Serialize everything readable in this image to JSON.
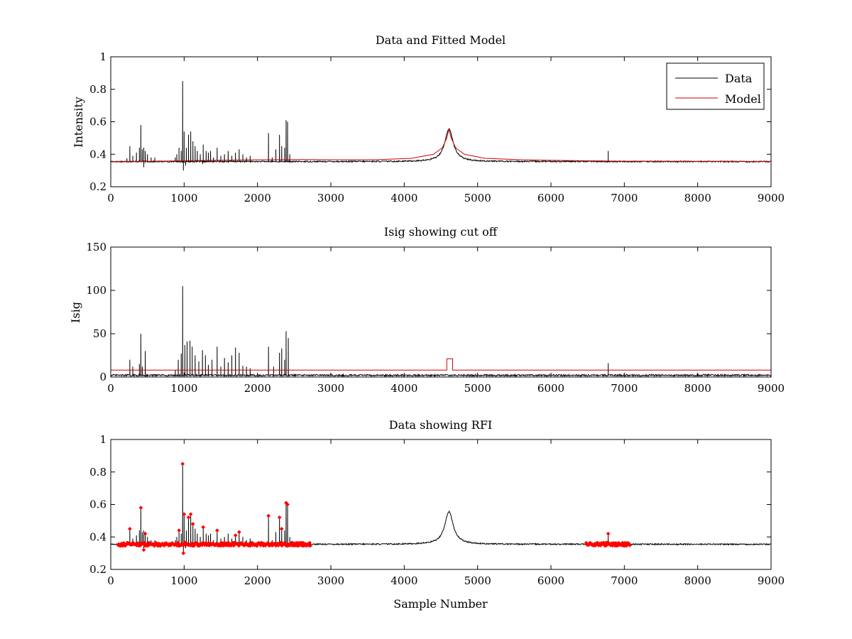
{
  "figure": {
    "background": "#ffffff"
  },
  "chart_data": [
    {
      "type": "line",
      "title": "Data and Fitted Model",
      "xlabel": "",
      "ylabel": "Intensity",
      "xlim": [
        0,
        9000
      ],
      "ylim": [
        0.2,
        1
      ],
      "xticks": [
        0,
        1000,
        2000,
        3000,
        4000,
        5000,
        6000,
        7000,
        8000,
        9000
      ],
      "xtick_labels": [
        "0",
        "1000",
        "2000",
        "3000",
        "4000",
        "5000",
        "6000",
        "7000",
        "8000",
        "9000"
      ],
      "yticks": [
        0.2,
        0.4,
        0.6,
        0.8,
        1
      ],
      "ytick_labels": [
        "0.2",
        "0.4",
        "0.6",
        "0.8",
        "1"
      ],
      "legend": {
        "placement": "top-right",
        "entries": [
          "Data",
          "Model"
        ]
      },
      "series": [
        {
          "name": "Data",
          "color": "#000000",
          "baseline": 0.355,
          "noise": 0.004,
          "peak": {
            "center": 4610,
            "height": 0.555,
            "width": 70
          },
          "spikes": [
            [
              220,
              0.375
            ],
            [
              260,
              0.45
            ],
            [
              300,
              0.39
            ],
            [
              350,
              0.41
            ],
            [
              390,
              0.44
            ],
            [
              410,
              0.58
            ],
            [
              430,
              0.43
            ],
            [
              450,
              0.44
            ],
            [
              470,
              0.42
            ],
            [
              500,
              0.4
            ],
            [
              550,
              0.38
            ],
            [
              600,
              0.38
            ],
            [
              880,
              0.38
            ],
            [
              900,
              0.4
            ],
            [
              930,
              0.44
            ],
            [
              960,
              0.42
            ],
            [
              980,
              0.85
            ],
            [
              1000,
              0.54
            ],
            [
              1030,
              0.44
            ],
            [
              1060,
              0.52
            ],
            [
              1090,
              0.54
            ],
            [
              1120,
              0.48
            ],
            [
              1150,
              0.45
            ],
            [
              1180,
              0.42
            ],
            [
              1220,
              0.4
            ],
            [
              1260,
              0.46
            ],
            [
              1300,
              0.42
            ],
            [
              1330,
              0.41
            ],
            [
              1360,
              0.42
            ],
            [
              1400,
              0.38
            ],
            [
              1450,
              0.44
            ],
            [
              1500,
              0.39
            ],
            [
              1550,
              0.4
            ],
            [
              1600,
              0.42
            ],
            [
              1650,
              0.39
            ],
            [
              1700,
              0.41
            ],
            [
              1750,
              0.43
            ],
            [
              1800,
              0.4
            ],
            [
              1850,
              0.38
            ],
            [
              1900,
              0.39
            ],
            [
              2150,
              0.53
            ],
            [
              2200,
              0.38
            ],
            [
              2250,
              0.43
            ],
            [
              2300,
              0.52
            ],
            [
              2330,
              0.45
            ],
            [
              2370,
              0.44
            ],
            [
              2390,
              0.61
            ],
            [
              2410,
              0.6
            ],
            [
              2440,
              0.4
            ],
            [
              6780,
              0.42
            ]
          ],
          "dips": [
            [
              450,
              0.32
            ],
            [
              990,
              0.3
            ],
            [
              1020,
              0.33
            ],
            [
              1250,
              0.34
            ]
          ]
        },
        {
          "name": "Model",
          "color": "#cc0000",
          "points": [
            [
              0,
              0.353
            ],
            [
              400,
              0.355
            ],
            [
              1000,
              0.36
            ],
            [
              2000,
              0.366
            ],
            [
              2600,
              0.367
            ],
            [
              3000,
              0.366
            ],
            [
              3600,
              0.366
            ],
            [
              4100,
              0.375
            ],
            [
              4400,
              0.4
            ],
            [
              4520,
              0.44
            ],
            [
              4580,
              0.5
            ],
            [
              4610,
              0.555
            ],
            [
              4640,
              0.5
            ],
            [
              4700,
              0.44
            ],
            [
              4820,
              0.4
            ],
            [
              5100,
              0.375
            ],
            [
              5600,
              0.366
            ],
            [
              6000,
              0.363
            ],
            [
              7000,
              0.357
            ],
            [
              8000,
              0.356
            ],
            [
              9000,
              0.355
            ]
          ]
        }
      ]
    },
    {
      "type": "line",
      "title": "Isig showing cut off",
      "xlabel": "",
      "ylabel": "Isig",
      "xlim": [
        0,
        9000
      ],
      "ylim": [
        0,
        150
      ],
      "xticks": [
        0,
        1000,
        2000,
        3000,
        4000,
        5000,
        6000,
        7000,
        8000,
        9000
      ],
      "xtick_labels": [
        "0",
        "1000",
        "2000",
        "3000",
        "4000",
        "5000",
        "6000",
        "7000",
        "8000",
        "9000"
      ],
      "yticks": [
        0,
        50,
        100,
        150
      ],
      "ytick_labels": [
        "0",
        "50",
        "100",
        "150"
      ],
      "series": [
        {
          "name": "Isig",
          "color": "#000000",
          "baseline": 2,
          "noise": 1,
          "spikes": [
            [
              260,
              20
            ],
            [
              300,
              12
            ],
            [
              390,
              15
            ],
            [
              410,
              50
            ],
            [
              430,
              12
            ],
            [
              470,
              30
            ],
            [
              880,
              8
            ],
            [
              920,
              20
            ],
            [
              960,
              27
            ],
            [
              980,
              105
            ],
            [
              1010,
              37
            ],
            [
              1040,
              41
            ],
            [
              1080,
              42
            ],
            [
              1110,
              35
            ],
            [
              1150,
              25
            ],
            [
              1200,
              18
            ],
            [
              1250,
              31
            ],
            [
              1290,
              25
            ],
            [
              1330,
              14
            ],
            [
              1380,
              20
            ],
            [
              1450,
              35
            ],
            [
              1500,
              12
            ],
            [
              1550,
              22
            ],
            [
              1600,
              17
            ],
            [
              1650,
              25
            ],
            [
              1700,
              34
            ],
            [
              1750,
              28
            ],
            [
              1800,
              13
            ],
            [
              1850,
              12
            ],
            [
              1900,
              10
            ],
            [
              2150,
              35
            ],
            [
              2220,
              12
            ],
            [
              2300,
              28
            ],
            [
              2330,
              33
            ],
            [
              2370,
              20
            ],
            [
              2390,
              53
            ],
            [
              2420,
              45
            ],
            [
              6780,
              16
            ]
          ]
        },
        {
          "name": "Cut off",
          "color": "#cc0000",
          "points": [
            [
              0,
              8
            ],
            [
              4580,
              8
            ],
            [
              4580,
              21
            ],
            [
              4660,
              21
            ],
            [
              4660,
              8
            ],
            [
              9000,
              8
            ]
          ]
        }
      ]
    },
    {
      "type": "line",
      "title": "Data showing RFI",
      "xlabel": "Sample Number",
      "ylabel": "",
      "xlim": [
        0,
        9000
      ],
      "ylim": [
        0.2,
        1
      ],
      "xticks": [
        0,
        1000,
        2000,
        3000,
        4000,
        5000,
        6000,
        7000,
        8000,
        9000
      ],
      "xtick_labels": [
        "0",
        "1000",
        "2000",
        "3000",
        "4000",
        "5000",
        "6000",
        "7000",
        "8000",
        "9000"
      ],
      "yticks": [
        0.2,
        0.4,
        0.6,
        0.8,
        1
      ],
      "ytick_labels": [
        "0.2",
        "0.4",
        "0.6",
        "0.8",
        "1"
      ],
      "series": [
        {
          "name": "Data",
          "color": "#000000",
          "baseline": 0.355,
          "noise": 0.004,
          "peak": {
            "center": 4610,
            "height": 0.555,
            "width": 70
          },
          "spikes": [
            [
              220,
              0.375
            ],
            [
              260,
              0.45
            ],
            [
              300,
              0.39
            ],
            [
              350,
              0.41
            ],
            [
              390,
              0.44
            ],
            [
              410,
              0.58
            ],
            [
              430,
              0.43
            ],
            [
              450,
              0.44
            ],
            [
              470,
              0.42
            ],
            [
              500,
              0.4
            ],
            [
              550,
              0.38
            ],
            [
              600,
              0.38
            ],
            [
              880,
              0.38
            ],
            [
              900,
              0.4
            ],
            [
              930,
              0.44
            ],
            [
              960,
              0.42
            ],
            [
              980,
              0.85
            ],
            [
              1000,
              0.54
            ],
            [
              1030,
              0.44
            ],
            [
              1060,
              0.52
            ],
            [
              1090,
              0.54
            ],
            [
              1120,
              0.48
            ],
            [
              1150,
              0.45
            ],
            [
              1180,
              0.42
            ],
            [
              1220,
              0.4
            ],
            [
              1260,
              0.46
            ],
            [
              1300,
              0.42
            ],
            [
              1330,
              0.41
            ],
            [
              1360,
              0.42
            ],
            [
              1400,
              0.38
            ],
            [
              1450,
              0.44
            ],
            [
              1500,
              0.39
            ],
            [
              1550,
              0.4
            ],
            [
              1600,
              0.42
            ],
            [
              1650,
              0.39
            ],
            [
              1700,
              0.41
            ],
            [
              1750,
              0.43
            ],
            [
              1800,
              0.4
            ],
            [
              1850,
              0.38
            ],
            [
              1900,
              0.39
            ],
            [
              2150,
              0.53
            ],
            [
              2200,
              0.38
            ],
            [
              2250,
              0.43
            ],
            [
              2300,
              0.52
            ],
            [
              2330,
              0.45
            ],
            [
              2370,
              0.44
            ],
            [
              2390,
              0.61
            ],
            [
              2410,
              0.6
            ],
            [
              2440,
              0.4
            ],
            [
              6780,
              0.42
            ]
          ],
          "dips": [
            [
              450,
              0.32
            ],
            [
              990,
              0.3
            ],
            [
              1020,
              0.33
            ],
            [
              1250,
              0.34
            ]
          ]
        },
        {
          "name": "RFI",
          "color": "#ff0000",
          "marker": "diamond",
          "flagged_ranges": [
            [
              100,
              2720
            ],
            [
              6480,
              7080
            ]
          ],
          "flagged_points": [
            [
              260,
              0.45
            ],
            [
              410,
              0.58
            ],
            [
              470,
              0.42
            ],
            [
              930,
              0.44
            ],
            [
              980,
              0.85
            ],
            [
              1000,
              0.54
            ],
            [
              1060,
              0.52
            ],
            [
              1090,
              0.54
            ],
            [
              1120,
              0.48
            ],
            [
              1260,
              0.46
            ],
            [
              1450,
              0.44
            ],
            [
              1700,
              0.41
            ],
            [
              1750,
              0.43
            ],
            [
              2150,
              0.53
            ],
            [
              2300,
              0.52
            ],
            [
              2330,
              0.45
            ],
            [
              2390,
              0.61
            ],
            [
              2410,
              0.6
            ],
            [
              990,
              0.3
            ],
            [
              450,
              0.32
            ],
            [
              6780,
              0.42
            ]
          ]
        }
      ]
    }
  ]
}
